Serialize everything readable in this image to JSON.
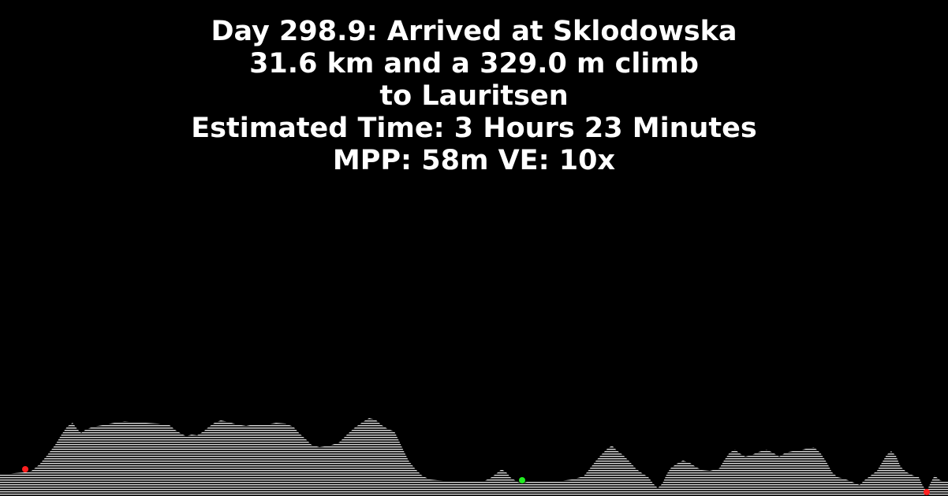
{
  "header": {
    "line1": "Day 298.9: Arrived at Sklodowska",
    "line2": "31.6 km and a 329.0 m climb",
    "line3": "to Lauritsen",
    "line4": "Estimated Time: 3 Hours 23 Minutes",
    "line5": "MPP: 58m VE: 10x"
  },
  "colors": {
    "background": "#000000",
    "text": "#ffffff",
    "terrain": "#d9d9d9",
    "start_marker": "#ff2020",
    "current_marker": "#22ee22",
    "end_marker": "#ff2020"
  },
  "markers": [
    {
      "name": "start-marker",
      "color": "#ff2020"
    },
    {
      "name": "current-position-marker",
      "color": "#22ee22"
    },
    {
      "name": "destination-marker",
      "color": "#ff2020"
    }
  ]
}
